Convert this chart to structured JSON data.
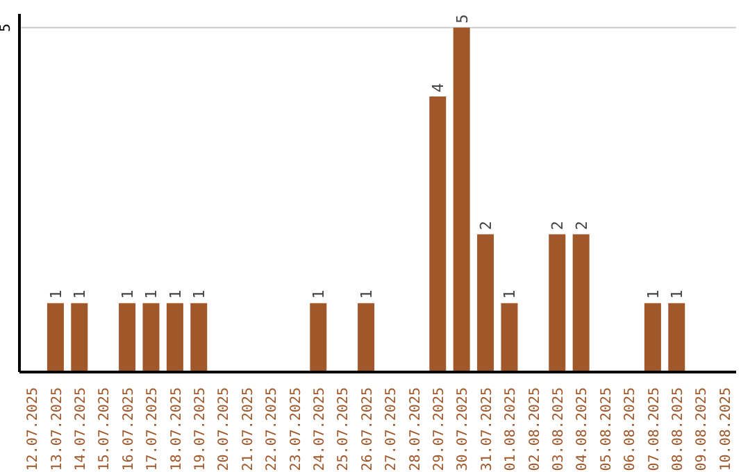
{
  "chart_data": {
    "type": "bar",
    "categories": [
      "12.07.2025",
      "13.07.2025",
      "14.07.2025",
      "15.07.2025",
      "16.07.2025",
      "17.07.2025",
      "18.07.2025",
      "19.07.2025",
      "20.07.2025",
      "21.07.2025",
      "22.07.2025",
      "23.07.2025",
      "24.07.2025",
      "25.07.2025",
      "26.07.2025",
      "27.07.2025",
      "28.07.2025",
      "29.07.2025",
      "30.07.2025",
      "31.07.2025",
      "01.08.2025",
      "02.08.2025",
      "03.08.2025",
      "04.08.2025",
      "05.08.2025",
      "06.08.2025",
      "07.08.2025",
      "08.08.2025",
      "09.08.2025",
      "10.08.2025"
    ],
    "values": [
      0,
      1,
      1,
      0,
      1,
      1,
      1,
      1,
      0,
      0,
      0,
      0,
      1,
      0,
      1,
      0,
      0,
      4,
      5,
      2,
      1,
      0,
      2,
      2,
      0,
      0,
      1,
      1,
      0,
      0
    ],
    "value_labels": [
      null,
      "1",
      "1",
      null,
      "1",
      "1",
      "1",
      "1",
      null,
      null,
      null,
      null,
      "1",
      null,
      "1",
      null,
      null,
      "4",
      "5",
      "2",
      "1",
      null,
      "2",
      "2",
      null,
      null,
      "1",
      "1",
      null,
      null
    ],
    "color": "#a0572a",
    "ylim": [
      0,
      5.2
    ],
    "yticks": [
      5
    ],
    "grid": "y"
  }
}
